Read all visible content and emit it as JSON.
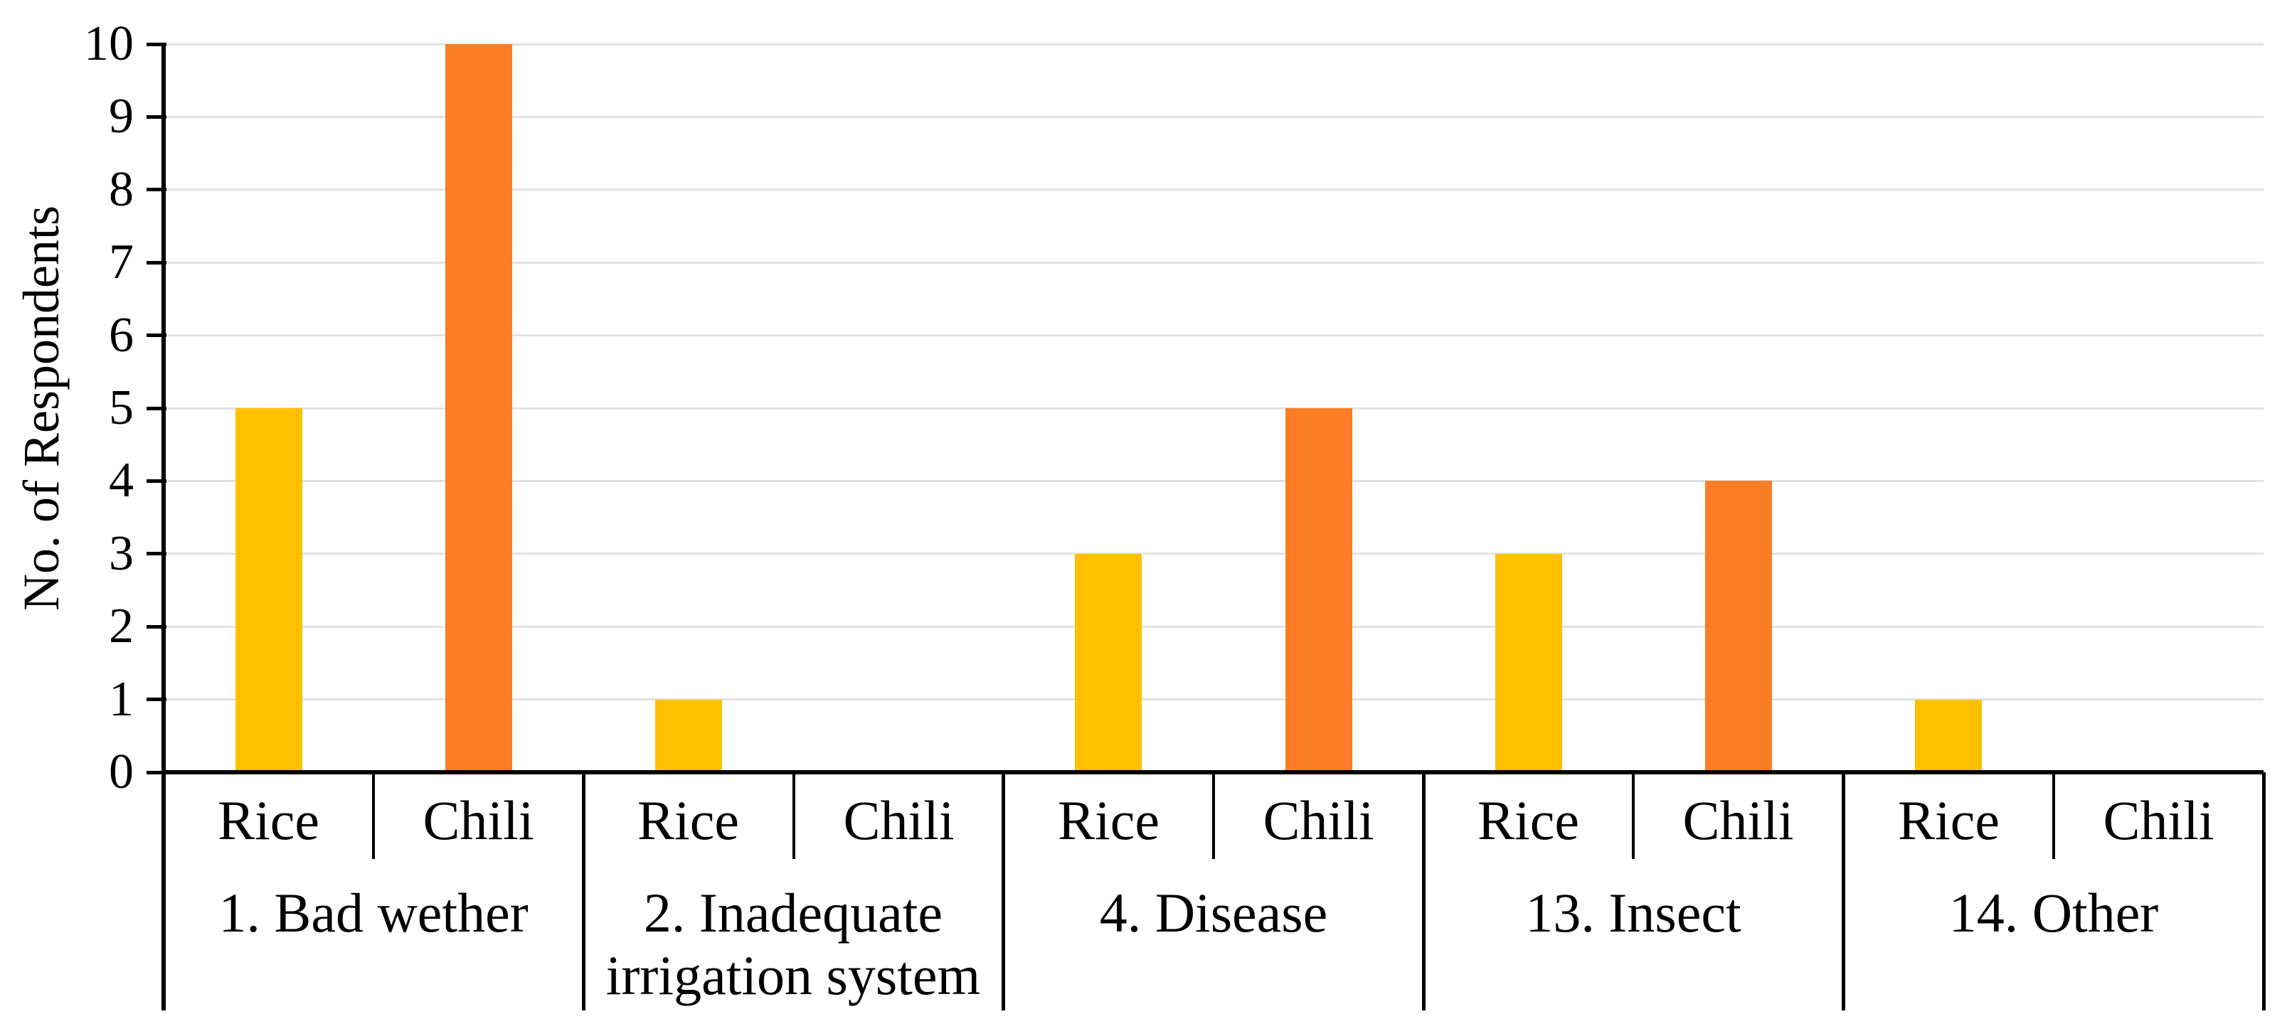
{
  "chart_data": {
    "type": "bar",
    "title": "",
    "ylabel": "No. of Respondents",
    "xlabel": "",
    "ylim": [
      0,
      10
    ],
    "yticks": [
      0,
      1,
      2,
      3,
      4,
      5,
      6,
      7,
      8,
      9,
      10
    ],
    "grid": true,
    "legend_position": "none",
    "categories": [
      "1. Bad wether",
      "2. Inadequate irrigation system",
      "4. Disease",
      "13. Insect",
      "14. Other"
    ],
    "sub_categories": [
      "Rice",
      "Chili"
    ],
    "series": [
      {
        "name": "Rice",
        "color": "#FFC000",
        "values": [
          5,
          1,
          3,
          3,
          1
        ]
      },
      {
        "name": "Chili",
        "color": "#FB7D26",
        "values": [
          10,
          0,
          5,
          4,
          0
        ]
      }
    ]
  },
  "colors": {
    "rice_bar": "#FFC000",
    "chili_bar": "#FB7D26",
    "gridline": "#E3E3E3",
    "axis": "#000000",
    "background": "#FFFFFF",
    "text": "#000000"
  }
}
